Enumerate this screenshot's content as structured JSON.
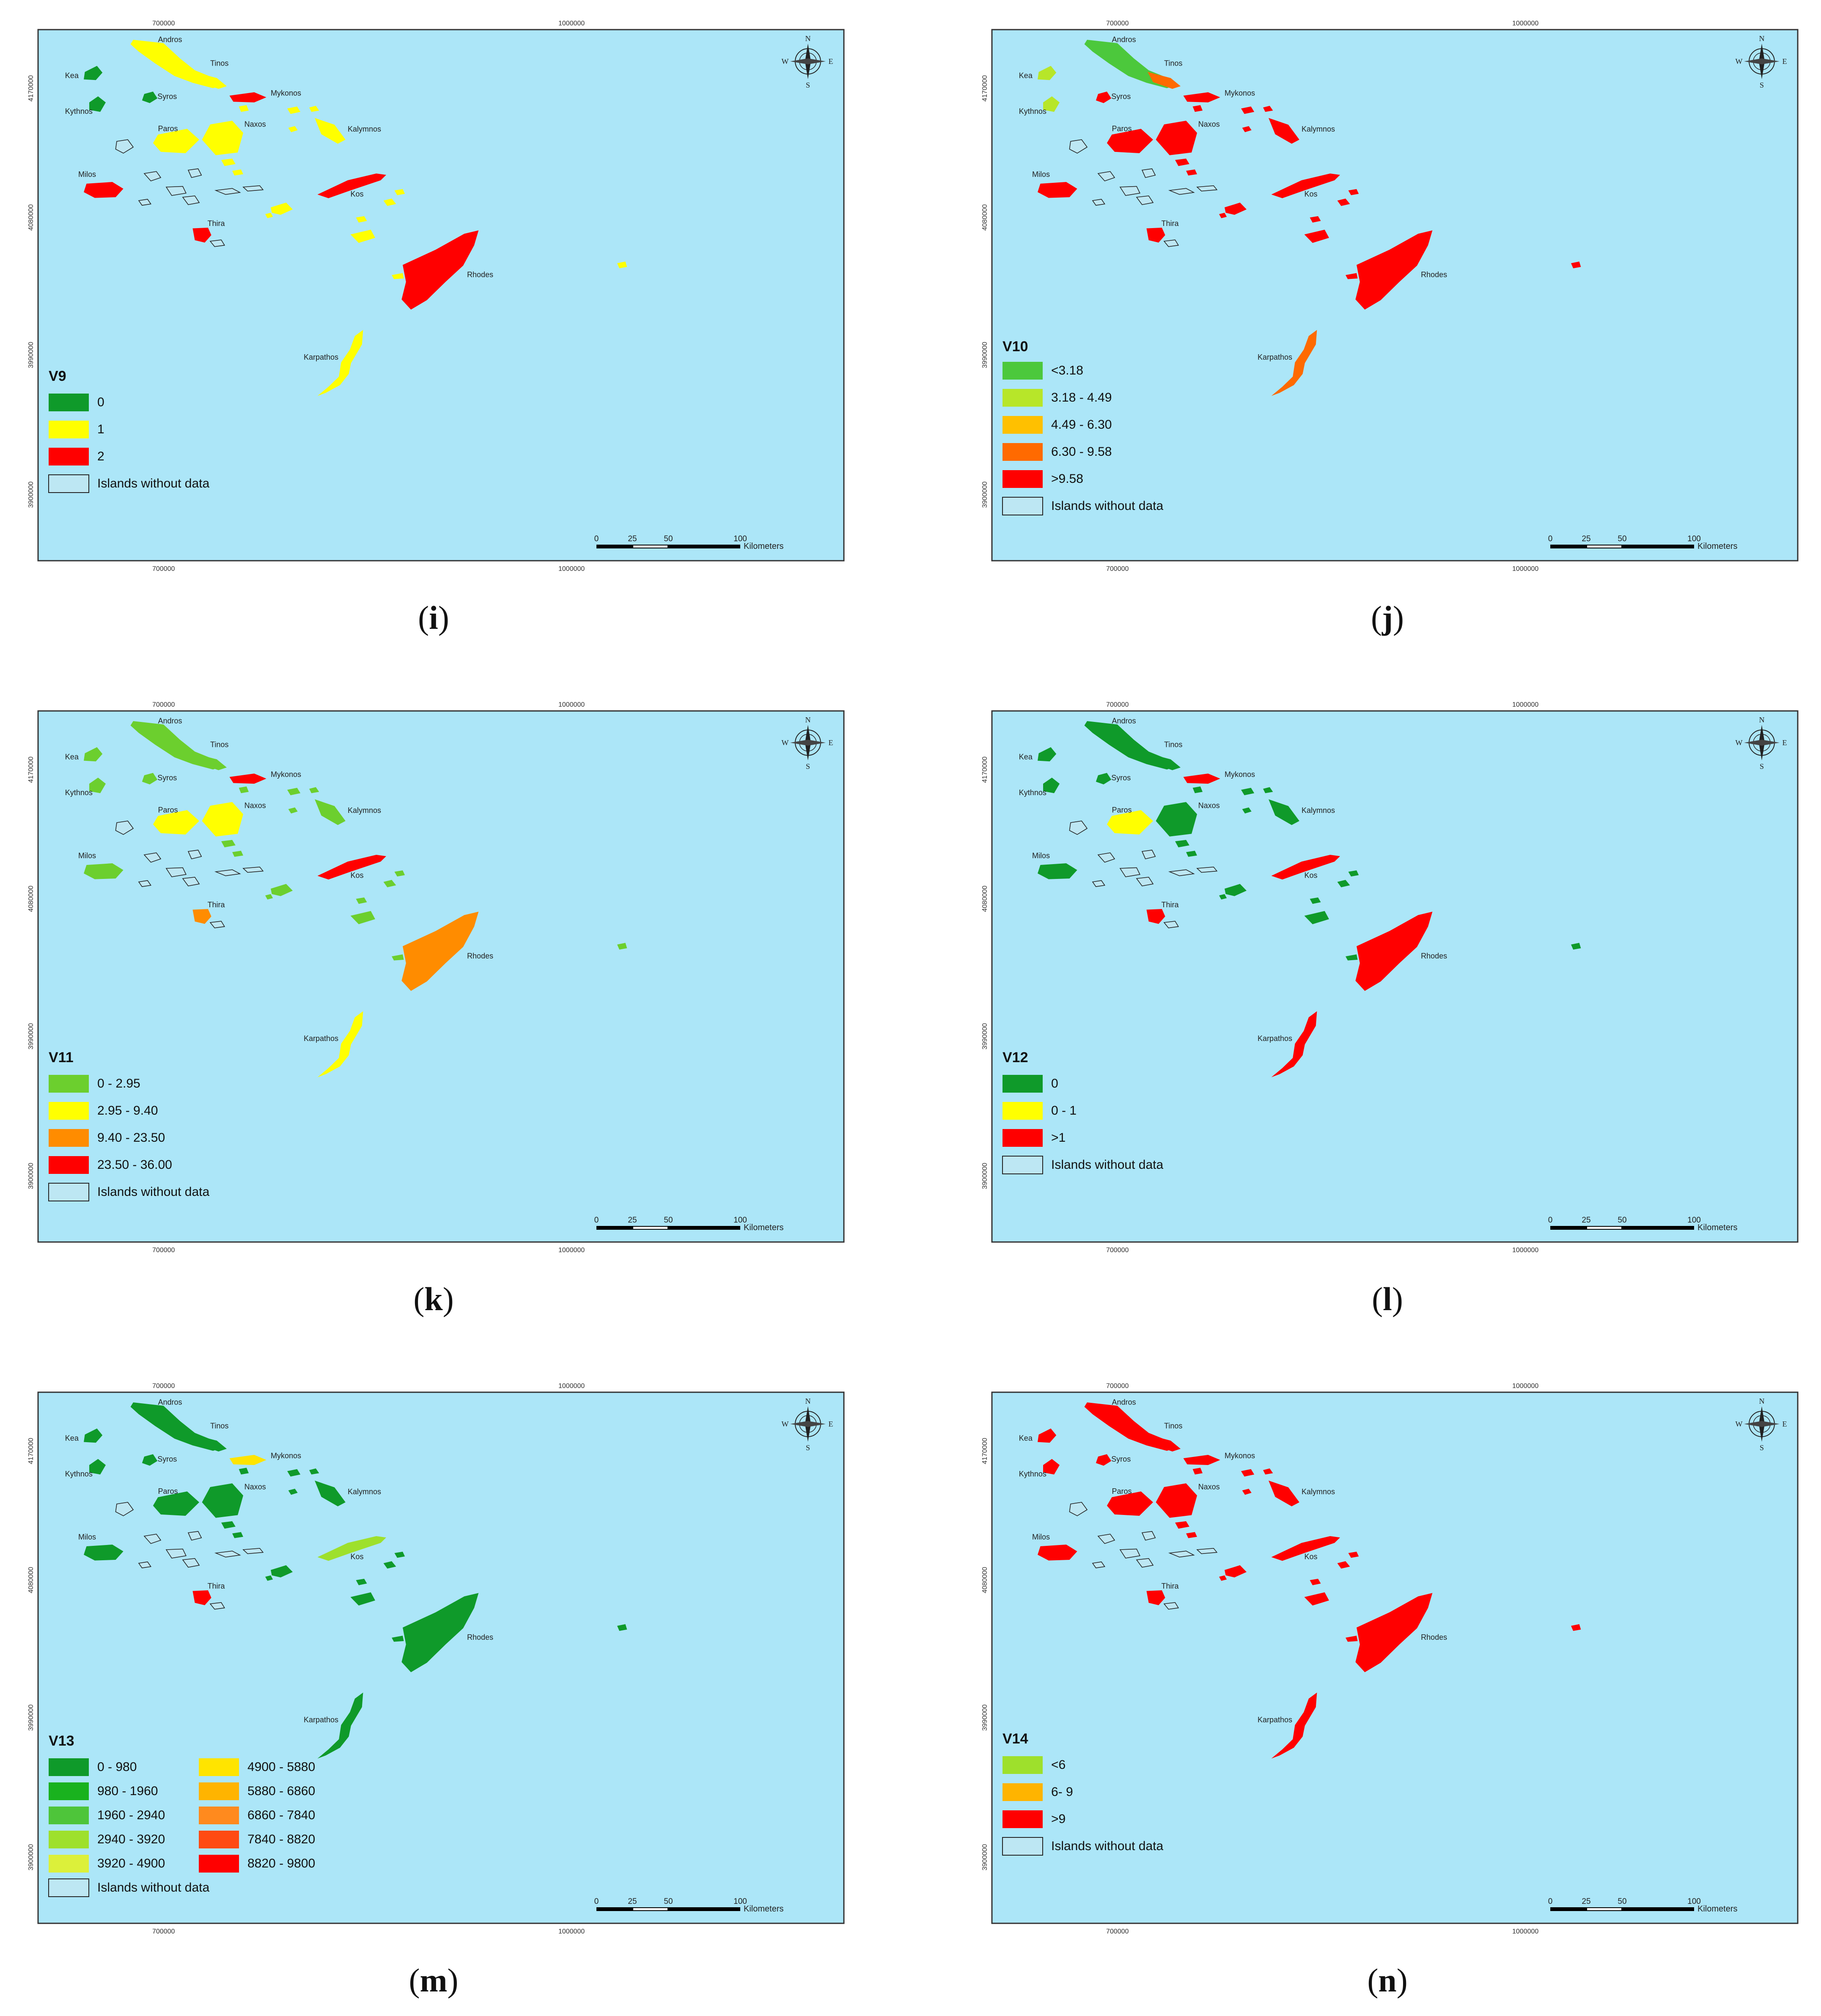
{
  "colors": {
    "sea": "#ace6f8",
    "frame": "#333333",
    "nodata_fill": "#bde7f3"
  },
  "coords": {
    "x_left": "700000",
    "x_right": "1000000",
    "y_top": "4170000",
    "y_mid": "4080000",
    "y_low": "3990000",
    "y_bottom": "3900000"
  },
  "compass": {
    "n": "N",
    "s": "S",
    "e": "E",
    "w": "W"
  },
  "scalebar": {
    "t0": "0",
    "t1": "25",
    "t2": "50",
    "t3": "100",
    "unit": "Kilometers"
  },
  "island_names": {
    "andros": "Andros",
    "tinos": "Tinos",
    "mykonos": "Mykonos",
    "kea": "Kea",
    "syros": "Syros",
    "kythnos": "Kythnos",
    "paros": "Paros",
    "naxos": "Naxos",
    "milos": "Milos",
    "thira": "Thira",
    "kalymnos": "Kalymnos",
    "kos": "Kos",
    "rhodes": "Rhodes",
    "karpathos": "Karpathos"
  },
  "panels": [
    {
      "id": "i",
      "caption_letter": "i",
      "legend_title": "V9",
      "legend": [
        {
          "label": "0",
          "color": "#0f9a2a"
        },
        {
          "label": "1",
          "color": "#ffff00"
        },
        {
          "label": "2",
          "color": "#ff0000"
        },
        {
          "label": "Islands without data",
          "color": "#bde7f3"
        }
      ],
      "island_colors": {
        "andros": "#ffff00",
        "tinos": "#ffff00",
        "mykonos": "#ff0000",
        "kea": "#0f9a2a",
        "syros": "#0f9a2a",
        "kythnos": "#0f9a2a",
        "paros": "#ffff00",
        "naxos": "#ffff00",
        "milos": "#ff0000",
        "thira": "#ff0000",
        "kalymnos": "#ffff00",
        "kos": "#ff0000",
        "rhodes": "#ff0000",
        "karpathos": "#ffff00",
        "small": "#ffff00"
      }
    },
    {
      "id": "j",
      "caption_letter": "j",
      "legend_title": "V10",
      "legend": [
        {
          "label": "<3.18",
          "color": "#4cc83c"
        },
        {
          "label": "3.18 - 4.49",
          "color": "#b7e629"
        },
        {
          "label": "4.49 - 6.30",
          "color": "#ffc000"
        },
        {
          "label": "6.30 - 9.58",
          "color": "#ff6a00"
        },
        {
          "label": ">9.58",
          "color": "#ff0000"
        },
        {
          "label": "Islands without data",
          "color": "#bde7f3"
        }
      ],
      "island_colors": {
        "andros": "#4cc83c",
        "tinos": "#ff6a00",
        "mykonos": "#ff0000",
        "kea": "#b7e629",
        "syros": "#ff0000",
        "kythnos": "#b7e629",
        "paros": "#ff0000",
        "naxos": "#ff0000",
        "milos": "#ff0000",
        "thira": "#ff0000",
        "kalymnos": "#ff0000",
        "kos": "#ff0000",
        "rhodes": "#ff0000",
        "karpathos": "#ff6a00",
        "small": "#ff0000"
      }
    },
    {
      "id": "k",
      "caption_letter": "k",
      "legend_title": "V11",
      "legend": [
        {
          "label": "0 - 2.95",
          "color": "#6ccf2e"
        },
        {
          "label": "2.95 - 9.40",
          "color": "#ffff00"
        },
        {
          "label": "9.40 - 23.50",
          "color": "#ff8c00"
        },
        {
          "label": "23.50 - 36.00",
          "color": "#ff0000"
        },
        {
          "label": "Islands without data",
          "color": "#bde7f3"
        }
      ],
      "island_colors": {
        "andros": "#6ccf2e",
        "tinos": "#6ccf2e",
        "mykonos": "#ff0000",
        "kea": "#6ccf2e",
        "syros": "#6ccf2e",
        "kythnos": "#6ccf2e",
        "paros": "#ffff00",
        "naxos": "#ffff00",
        "milos": "#6ccf2e",
        "thira": "#ff8c00",
        "kalymnos": "#6ccf2e",
        "kos": "#ff0000",
        "rhodes": "#ff8c00",
        "karpathos": "#ffff00",
        "small": "#6ccf2e"
      }
    },
    {
      "id": "l",
      "caption_letter": "l",
      "legend_title": "V12",
      "legend": [
        {
          "label": "0",
          "color": "#0f9a2a"
        },
        {
          "label": "0 - 1",
          "color": "#ffff00"
        },
        {
          "label": ">1",
          "color": "#ff0000"
        },
        {
          "label": "Islands without data",
          "color": "#bde7f3"
        }
      ],
      "island_colors": {
        "andros": "#0f9a2a",
        "tinos": "#0f9a2a",
        "mykonos": "#ff0000",
        "kea": "#0f9a2a",
        "syros": "#0f9a2a",
        "kythnos": "#0f9a2a",
        "paros": "#ffff00",
        "naxos": "#0f9a2a",
        "milos": "#0f9a2a",
        "thira": "#ff0000",
        "kalymnos": "#0f9a2a",
        "kos": "#ff0000",
        "rhodes": "#ff0000",
        "karpathos": "#ff0000",
        "small": "#0f9a2a"
      }
    },
    {
      "id": "m",
      "caption_letter": "m",
      "legend_title": "V13",
      "legend": [
        {
          "label": "0 - 980",
          "color": "#0f9a2a"
        },
        {
          "label": "980 - 1960",
          "color": "#19b21e"
        },
        {
          "label": "1960 - 2940",
          "color": "#4ec53a"
        },
        {
          "label": "2940 - 3920",
          "color": "#9ee02c"
        },
        {
          "label": "3920 - 4900",
          "color": "#dcf03a"
        },
        {
          "label": "4900 - 5880",
          "color": "#ffe400"
        },
        {
          "label": "5880 - 6860",
          "color": "#ffb400"
        },
        {
          "label": "6860 - 7840",
          "color": "#ff8a1e"
        },
        {
          "label": "7840 - 8820",
          "color": "#ff4a12"
        },
        {
          "label": "8820 - 9800",
          "color": "#ff0000"
        },
        {
          "label": "Islands without data",
          "color": "#bde7f3"
        }
      ],
      "island_colors": {
        "andros": "#0f9a2a",
        "tinos": "#0f9a2a",
        "mykonos": "#ffe400",
        "kea": "#0f9a2a",
        "syros": "#0f9a2a",
        "kythnos": "#0f9a2a",
        "paros": "#0f9a2a",
        "naxos": "#0f9a2a",
        "milos": "#0f9a2a",
        "thira": "#ff0000",
        "kalymnos": "#0f9a2a",
        "kos": "#9ee02c",
        "rhodes": "#0f9a2a",
        "karpathos": "#0f9a2a",
        "small": "#0f9a2a"
      }
    },
    {
      "id": "n",
      "caption_letter": "n",
      "legend_title": "V14",
      "legend": [
        {
          "label": "<6",
          "color": "#9ee02c"
        },
        {
          "label": "6- 9",
          "color": "#ffb400"
        },
        {
          "label": ">9",
          "color": "#ff0000"
        },
        {
          "label": "Islands without data",
          "color": "#bde7f3"
        }
      ],
      "island_colors": {
        "andros": "#ff0000",
        "tinos": "#ff0000",
        "mykonos": "#ff0000",
        "kea": "#ff0000",
        "syros": "#ff0000",
        "kythnos": "#ff0000",
        "paros": "#ff0000",
        "naxos": "#ff0000",
        "milos": "#ff0000",
        "thira": "#ff0000",
        "kalymnos": "#ff0000",
        "kos": "#ff0000",
        "rhodes": "#ff0000",
        "karpathos": "#ff0000",
        "small": "#ff0000"
      }
    }
  ]
}
